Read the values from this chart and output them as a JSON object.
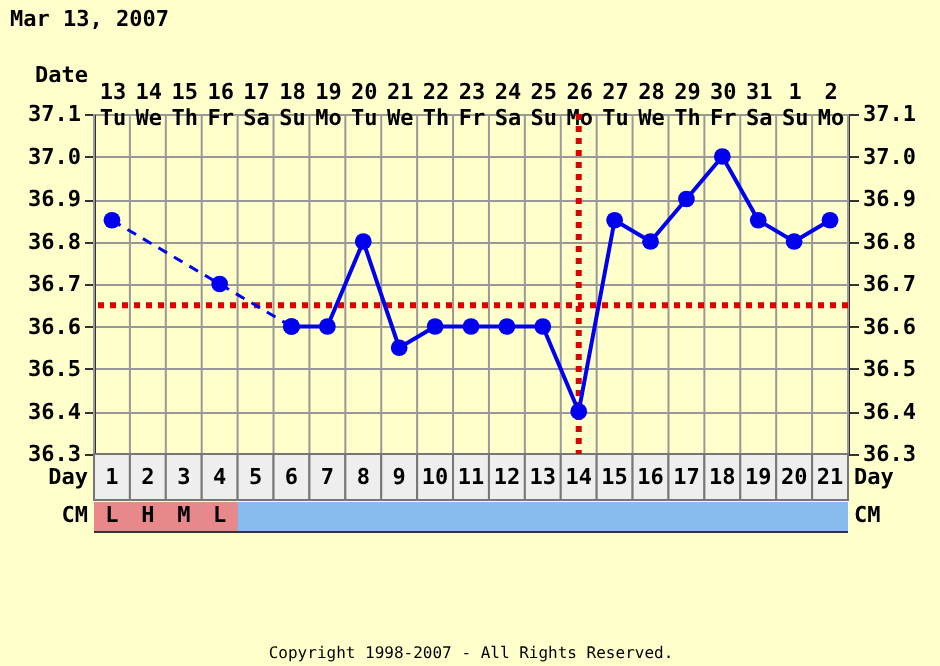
{
  "chart_data": {
    "type": "line",
    "title": "Mar 13, 2007",
    "xlabel": "Day",
    "x2label": "Date",
    "xlim": [
      0.5,
      21.5
    ],
    "xticks": [
      1,
      2,
      3,
      4,
      5,
      6,
      7,
      8,
      9,
      10,
      11,
      12,
      13,
      14,
      15,
      16,
      17,
      18,
      19,
      20,
      21
    ],
    "x2lim": [
      "2007-03-12T12:00",
      "2007-04-02T12:00"
    ],
    "x2ticks": [
      {
        "value": "2007-03-13",
        "label": "13 Tu"
      },
      {
        "value": "2007-03-14",
        "label": "14 We"
      },
      {
        "value": "2007-03-15",
        "label": "15 Th"
      },
      {
        "value": "2007-03-16",
        "label": "16 Fr"
      },
      {
        "value": "2007-03-17",
        "label": "17 Sa"
      },
      {
        "value": "2007-03-18",
        "label": "18 Su"
      },
      {
        "value": "2007-03-19",
        "label": "19 Mo"
      },
      {
        "value": "2007-03-20",
        "label": "20 Tu"
      },
      {
        "value": "2007-03-21",
        "label": "21 We"
      },
      {
        "value": "2007-03-22",
        "label": "22 Th"
      },
      {
        "value": "2007-03-23",
        "label": "23 Fr"
      },
      {
        "value": "2007-03-24",
        "label": "24 Sa"
      },
      {
        "value": "2007-03-25",
        "label": "25 Su"
      },
      {
        "value": "2007-03-26",
        "label": "26 Mo"
      },
      {
        "value": "2007-03-27",
        "label": "27 Tu"
      },
      {
        "value": "2007-03-28",
        "label": "28 We"
      },
      {
        "value": "2007-03-29",
        "label": "29 Th"
      },
      {
        "value": "2007-03-30",
        "label": "30 Fr"
      },
      {
        "value": "2007-03-31",
        "label": "31 Sa"
      },
      {
        "value": "2007-04-01",
        "label": "1 Su"
      },
      {
        "value": "2007-04-02",
        "label": "2 Mo"
      }
    ],
    "ylim": [
      36.3,
      37.1
    ],
    "yticks": [
      36.3,
      36.4,
      36.5,
      36.6,
      36.7,
      36.8,
      36.9,
      {
        "value": 37.0,
        "label": "37.0"
      },
      37.1
    ],
    "y2lim": [
      36.3,
      37.1
    ],
    "y2ticks": [
      36.3,
      36.4,
      36.5,
      36.6,
      36.7,
      36.8,
      36.9,
      {
        "value": 37.0,
        "label": "37.0"
      },
      37.1
    ],
    "grid": true,
    "series": [
      {
        "color": "#0000ee",
        "line_style": "dashed",
        "marker": "circle",
        "x": [
          1,
          4,
          6
        ],
        "values": [
          36.85,
          36.7,
          36.6
        ]
      },
      {
        "color": "#0000ee",
        "line_style": "solid",
        "marker": "circle",
        "x": [
          6,
          7,
          8,
          9,
          10,
          11,
          12,
          13,
          14,
          15,
          16,
          17,
          18,
          19,
          20,
          21
        ],
        "values": [
          36.6,
          36.6,
          36.8,
          36.55,
          36.6,
          36.6,
          36.6,
          36.6,
          36.4,
          36.85,
          36.8,
          36.9,
          37.0,
          36.85,
          36.8,
          36.85
        ]
      }
    ],
    "ref_lines": [
      {
        "axis": "y",
        "value": 36.65,
        "color": "#dd0000",
        "line_style": "dotted"
      },
      {
        "axis": "x",
        "value": 14,
        "color": "#dd0000",
        "line_style": "dotted"
      }
    ],
    "annotations": [
      "CM",
      "L",
      "H",
      "M",
      "L",
      "Copyright 1998-2007 - All Rights Reserved."
    ]
  }
}
